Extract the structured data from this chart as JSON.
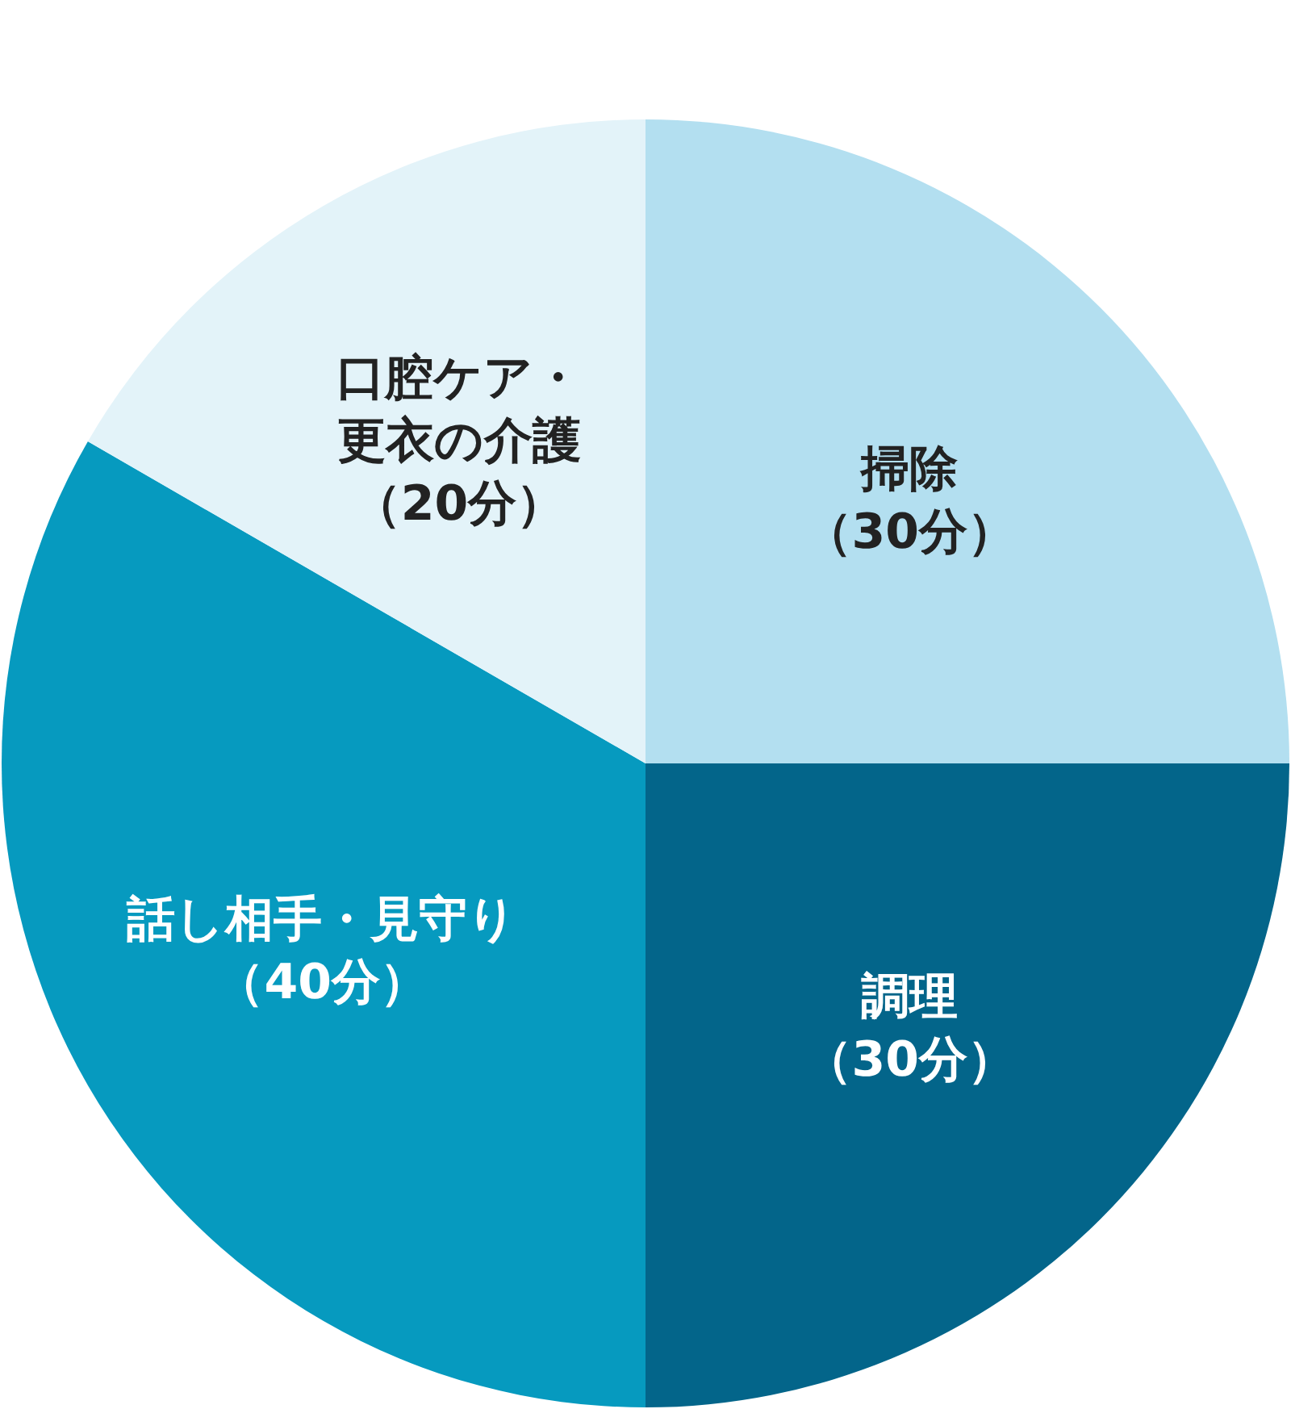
{
  "chart_data": {
    "type": "pie",
    "categories": [
      "掃除",
      "調理",
      "話し相手・見守り",
      "口腔ケア・更衣の介護"
    ],
    "values": [
      30,
      30,
      40,
      20
    ],
    "value_labels": [
      "（30分）",
      "（30分）",
      "（40分）",
      "（20分）"
    ],
    "colors": [
      "#b3dff0",
      "#03658a",
      "#069abf",
      "#e3f3f9"
    ]
  }
}
